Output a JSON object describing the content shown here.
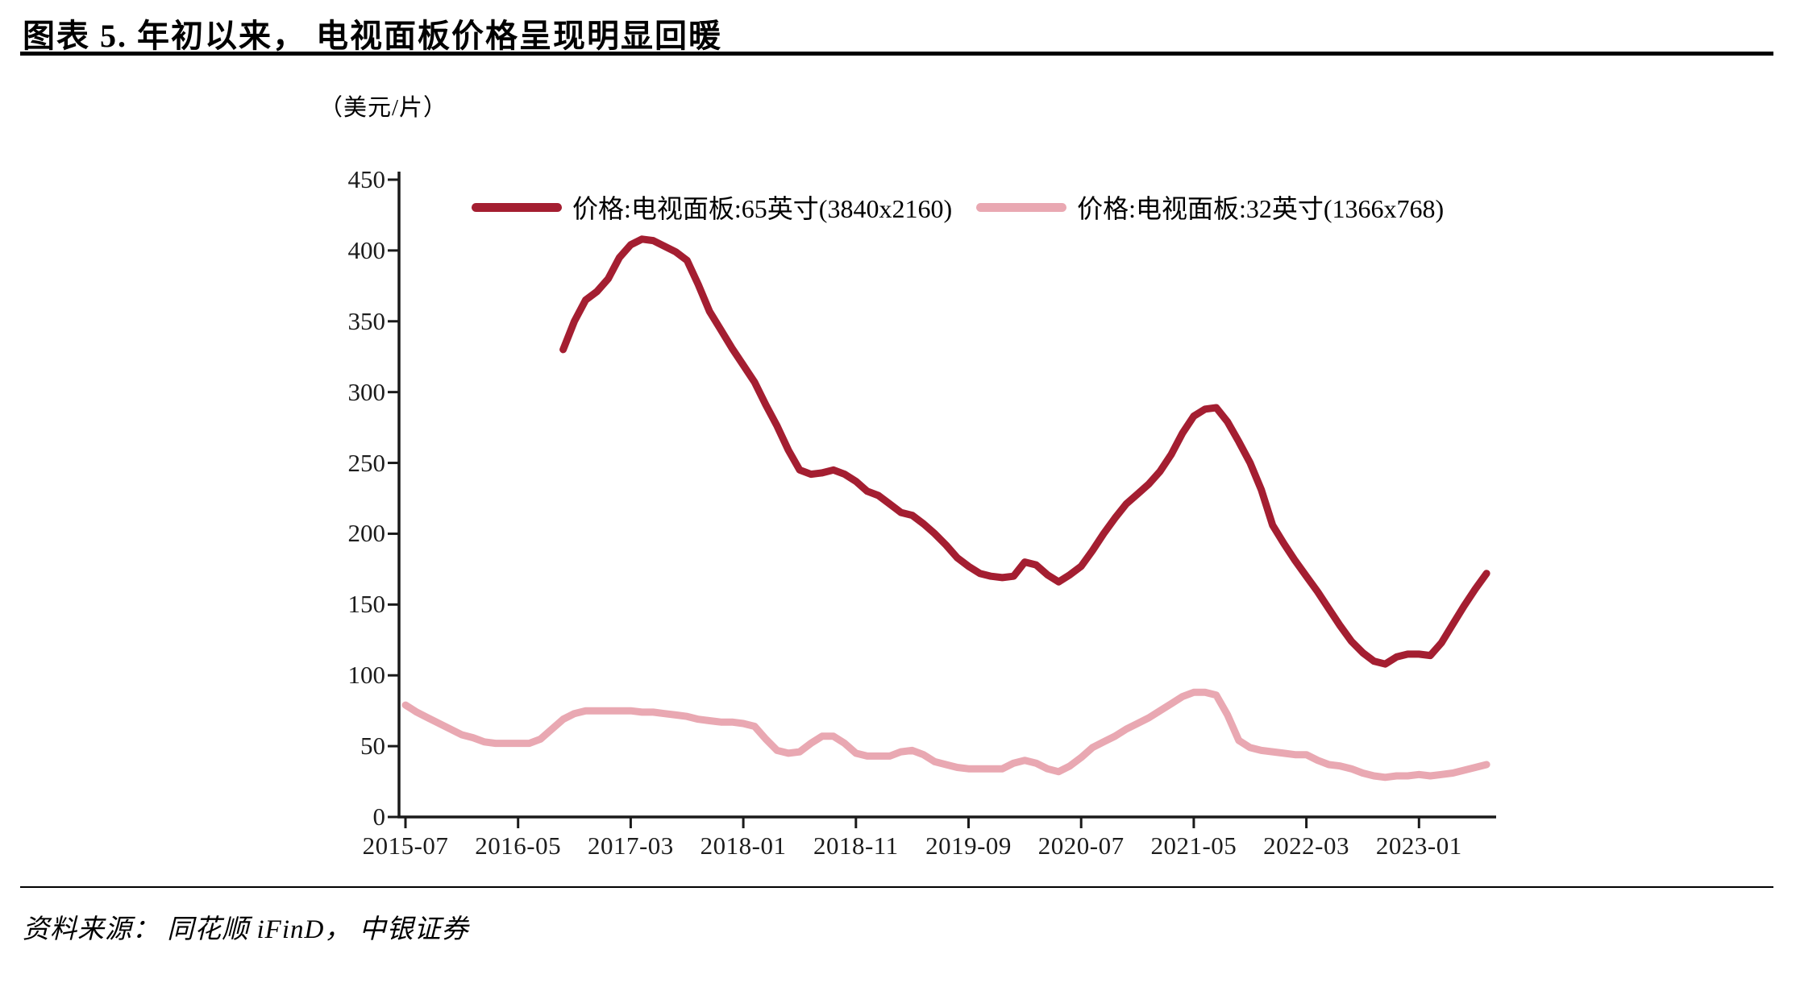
{
  "page": {
    "title": "图表 5. 年初以来， 电视面板价格呈现明显回暖",
    "source": "资料来源： 同花顺 iFinD， 中银证券"
  },
  "colors": {
    "series_65": "#A41E31",
    "series_32": "#E9A8B2",
    "axis": "#1A1A1A"
  },
  "chart_data": {
    "type": "line",
    "title": "图表 5. 年初以来， 电视面板价格呈现明显回暖",
    "unit_label": "（美元/片）",
    "xlabel": "",
    "ylabel": "（美元/片）",
    "ylim": [
      0,
      450
    ],
    "y_ticks": [
      450,
      400,
      350,
      300,
      250,
      200,
      150,
      100,
      50,
      0
    ],
    "x_ticks": [
      "2015-07",
      "2016-05",
      "2017-03",
      "2018-01",
      "2018-11",
      "2019-09",
      "2020-07",
      "2021-05",
      "2022-03",
      "2023-01"
    ],
    "x_range": [
      "2015-07",
      "2023-07"
    ],
    "grid": false,
    "legend_position": "top",
    "series": [
      {
        "name": "价格:电视面板:65英寸(3840x2160)",
        "color": "#A41E31",
        "points": [
          [
            "2016-09",
            330
          ],
          [
            "2016-10",
            350
          ],
          [
            "2016-11",
            365
          ],
          [
            "2016-12",
            371
          ],
          [
            "2017-01",
            380
          ],
          [
            "2017-02",
            395
          ],
          [
            "2017-03",
            404
          ],
          [
            "2017-04",
            408
          ],
          [
            "2017-05",
            407
          ],
          [
            "2017-06",
            403
          ],
          [
            "2017-07",
            399
          ],
          [
            "2017-08",
            393
          ],
          [
            "2017-09",
            376
          ],
          [
            "2017-10",
            357
          ],
          [
            "2017-11",
            344
          ],
          [
            "2017-12",
            331
          ],
          [
            "2018-01",
            319
          ],
          [
            "2018-02",
            307
          ],
          [
            "2018-03",
            291
          ],
          [
            "2018-04",
            276
          ],
          [
            "2018-05",
            259
          ],
          [
            "2018-06",
            245
          ],
          [
            "2018-07",
            242
          ],
          [
            "2018-08",
            243
          ],
          [
            "2018-09",
            245
          ],
          [
            "2018-10",
            242
          ],
          [
            "2018-11",
            237
          ],
          [
            "2018-12",
            230
          ],
          [
            "2019-01",
            227
          ],
          [
            "2019-02",
            221
          ],
          [
            "2019-03",
            215
          ],
          [
            "2019-04",
            213
          ],
          [
            "2019-05",
            207
          ],
          [
            "2019-06",
            200
          ],
          [
            "2019-07",
            192
          ],
          [
            "2019-08",
            183
          ],
          [
            "2019-09",
            177
          ],
          [
            "2019-10",
            172
          ],
          [
            "2019-11",
            170
          ],
          [
            "2019-12",
            169
          ],
          [
            "2020-01",
            170
          ],
          [
            "2020-02",
            180
          ],
          [
            "2020-03",
            178
          ],
          [
            "2020-04",
            171
          ],
          [
            "2020-05",
            166
          ],
          [
            "2020-06",
            171
          ],
          [
            "2020-07",
            177
          ],
          [
            "2020-08",
            188
          ],
          [
            "2020-09",
            200
          ],
          [
            "2020-10",
            211
          ],
          [
            "2020-11",
            221
          ],
          [
            "2020-12",
            228
          ],
          [
            "2021-01",
            235
          ],
          [
            "2021-02",
            244
          ],
          [
            "2021-03",
            256
          ],
          [
            "2021-04",
            271
          ],
          [
            "2021-05",
            283
          ],
          [
            "2021-06",
            288
          ],
          [
            "2021-07",
            289
          ],
          [
            "2021-08",
            279
          ],
          [
            "2021-09",
            265
          ],
          [
            "2021-10",
            250
          ],
          [
            "2021-11",
            231
          ],
          [
            "2021-12",
            206
          ],
          [
            "2022-01",
            193
          ],
          [
            "2022-02",
            181
          ],
          [
            "2022-03",
            170
          ],
          [
            "2022-04",
            159
          ],
          [
            "2022-05",
            147
          ],
          [
            "2022-06",
            135
          ],
          [
            "2022-07",
            124
          ],
          [
            "2022-08",
            116
          ],
          [
            "2022-09",
            110
          ],
          [
            "2022-10",
            108
          ],
          [
            "2022-11",
            113
          ],
          [
            "2022-12",
            115
          ],
          [
            "2023-01",
            115
          ],
          [
            "2023-02",
            114
          ],
          [
            "2023-03",
            123
          ],
          [
            "2023-04",
            136
          ],
          [
            "2023-05",
            149
          ],
          [
            "2023-06",
            161
          ],
          [
            "2023-07",
            172
          ]
        ]
      },
      {
        "name": "价格:电视面板:32英寸(1366x768)",
        "color": "#E9A8B2",
        "points": [
          [
            "2015-07",
            79
          ],
          [
            "2015-08",
            74
          ],
          [
            "2015-09",
            70
          ],
          [
            "2015-10",
            66
          ],
          [
            "2015-11",
            62
          ],
          [
            "2015-12",
            58
          ],
          [
            "2016-01",
            56
          ],
          [
            "2016-02",
            53
          ],
          [
            "2016-03",
            52
          ],
          [
            "2016-04",
            52
          ],
          [
            "2016-05",
            52
          ],
          [
            "2016-06",
            52
          ],
          [
            "2016-07",
            55
          ],
          [
            "2016-08",
            62
          ],
          [
            "2016-09",
            69
          ],
          [
            "2016-10",
            73
          ],
          [
            "2016-11",
            75
          ],
          [
            "2016-12",
            75
          ],
          [
            "2017-01",
            75
          ],
          [
            "2017-02",
            75
          ],
          [
            "2017-03",
            75
          ],
          [
            "2017-04",
            74
          ],
          [
            "2017-05",
            74
          ],
          [
            "2017-06",
            73
          ],
          [
            "2017-07",
            72
          ],
          [
            "2017-08",
            71
          ],
          [
            "2017-09",
            69
          ],
          [
            "2017-10",
            68
          ],
          [
            "2017-11",
            67
          ],
          [
            "2017-12",
            67
          ],
          [
            "2018-01",
            66
          ],
          [
            "2018-02",
            64
          ],
          [
            "2018-03",
            55
          ],
          [
            "2018-04",
            47
          ],
          [
            "2018-05",
            45
          ],
          [
            "2018-06",
            46
          ],
          [
            "2018-07",
            52
          ],
          [
            "2018-08",
            57
          ],
          [
            "2018-09",
            57
          ],
          [
            "2018-10",
            52
          ],
          [
            "2018-11",
            45
          ],
          [
            "2018-12",
            43
          ],
          [
            "2019-01",
            43
          ],
          [
            "2019-02",
            43
          ],
          [
            "2019-03",
            46
          ],
          [
            "2019-04",
            47
          ],
          [
            "2019-05",
            44
          ],
          [
            "2019-06",
            39
          ],
          [
            "2019-07",
            37
          ],
          [
            "2019-08",
            35
          ],
          [
            "2019-09",
            34
          ],
          [
            "2019-10",
            34
          ],
          [
            "2019-11",
            34
          ],
          [
            "2019-12",
            34
          ],
          [
            "2020-01",
            38
          ],
          [
            "2020-02",
            40
          ],
          [
            "2020-03",
            38
          ],
          [
            "2020-04",
            34
          ],
          [
            "2020-05",
            32
          ],
          [
            "2020-06",
            36
          ],
          [
            "2020-07",
            42
          ],
          [
            "2020-08",
            49
          ],
          [
            "2020-09",
            53
          ],
          [
            "2020-10",
            57
          ],
          [
            "2020-11",
            62
          ],
          [
            "2020-12",
            66
          ],
          [
            "2021-01",
            70
          ],
          [
            "2021-02",
            75
          ],
          [
            "2021-03",
            80
          ],
          [
            "2021-04",
            85
          ],
          [
            "2021-05",
            88
          ],
          [
            "2021-06",
            88
          ],
          [
            "2021-07",
            86
          ],
          [
            "2021-08",
            72
          ],
          [
            "2021-09",
            54
          ],
          [
            "2021-10",
            49
          ],
          [
            "2021-11",
            47
          ],
          [
            "2021-12",
            46
          ],
          [
            "2022-01",
            45
          ],
          [
            "2022-02",
            44
          ],
          [
            "2022-03",
            44
          ],
          [
            "2022-04",
            40
          ],
          [
            "2022-05",
            37
          ],
          [
            "2022-06",
            36
          ],
          [
            "2022-07",
            34
          ],
          [
            "2022-08",
            31
          ],
          [
            "2022-09",
            29
          ],
          [
            "2022-10",
            28
          ],
          [
            "2022-11",
            29
          ],
          [
            "2022-12",
            29
          ],
          [
            "2023-01",
            30
          ],
          [
            "2023-02",
            29
          ],
          [
            "2023-03",
            30
          ],
          [
            "2023-04",
            31
          ],
          [
            "2023-05",
            33
          ],
          [
            "2023-06",
            35
          ],
          [
            "2023-07",
            37
          ]
        ]
      }
    ]
  }
}
